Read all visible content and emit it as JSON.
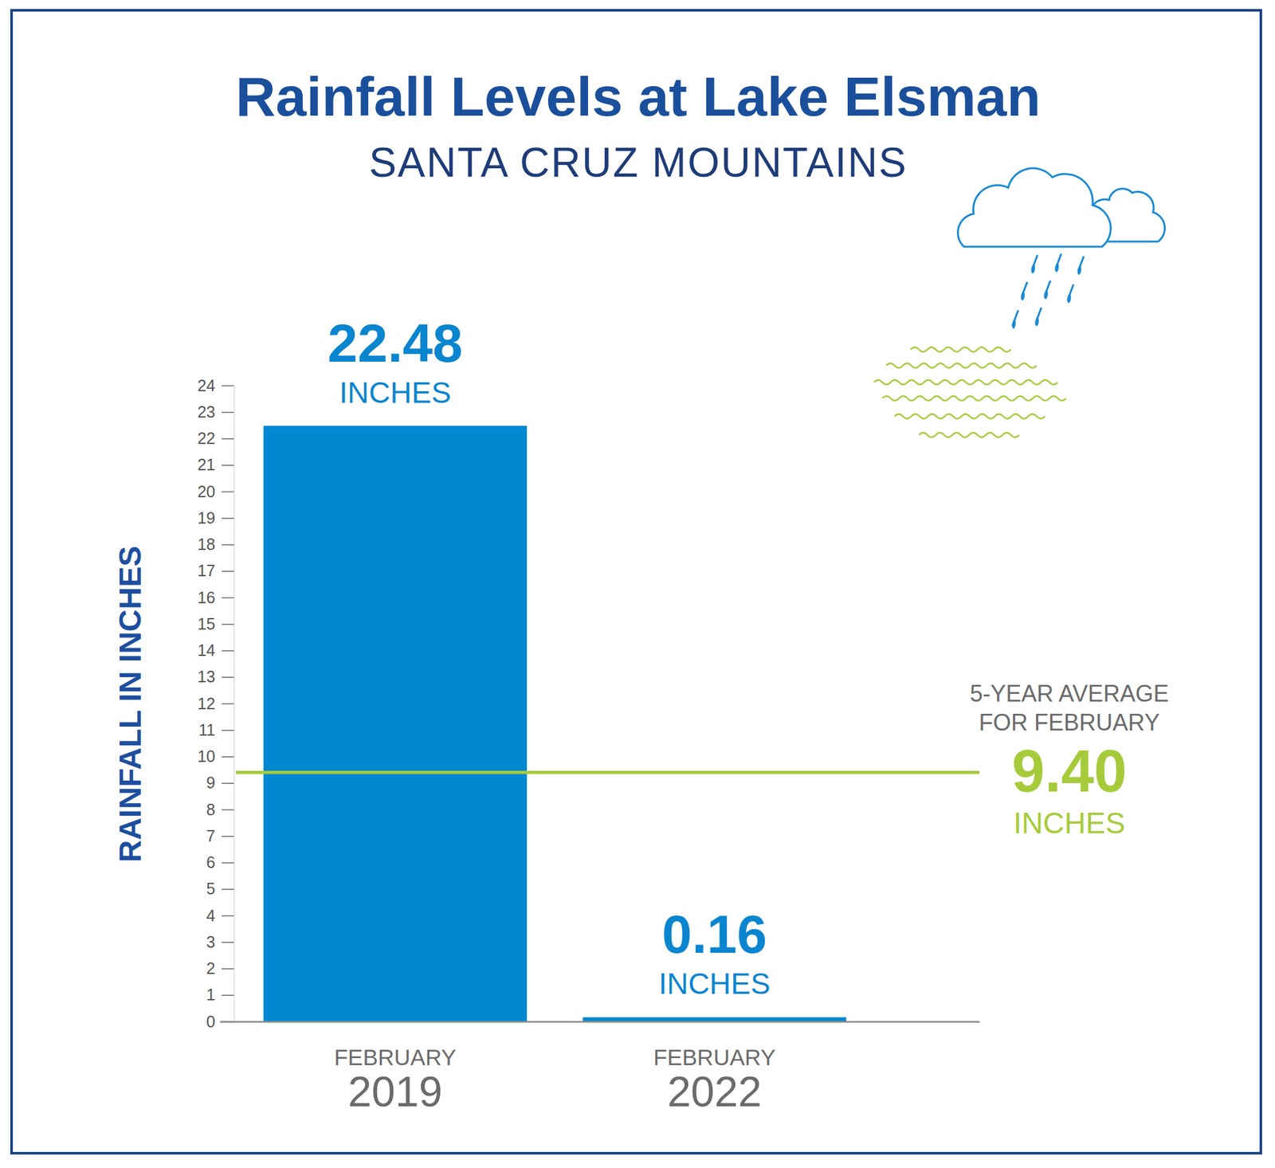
{
  "chart_data": {
    "type": "bar",
    "title": "Rainfall Levels at Lake Elsman",
    "subtitle": "SANTA CRUZ MOUNTAINS",
    "y_label": "RAINFALL IN INCHES",
    "categories": [
      "FEBRUARY 2019",
      "FEBRUARY 2022"
    ],
    "values": [
      22.48,
      0.16
    ],
    "value_labels": [
      "22.48 INCHES",
      "0.16 INCHES"
    ],
    "color": "#0088d1",
    "data_labels": true,
    "grid": false,
    "ylim": [
      0,
      24
    ],
    "yticks": [
      0,
      1,
      2,
      3,
      4,
      5,
      6,
      7,
      8,
      9,
      10,
      11,
      12,
      13,
      14,
      15,
      16,
      17,
      18,
      19,
      20,
      21,
      22,
      23,
      24
    ],
    "reference_line": {
      "value": 9.4,
      "label": [
        "5-YEAR AVERAGE",
        "FOR FEBRUARY"
      ],
      "value_label": "9.40 INCHES",
      "color": "#a6cb3a"
    }
  }
}
